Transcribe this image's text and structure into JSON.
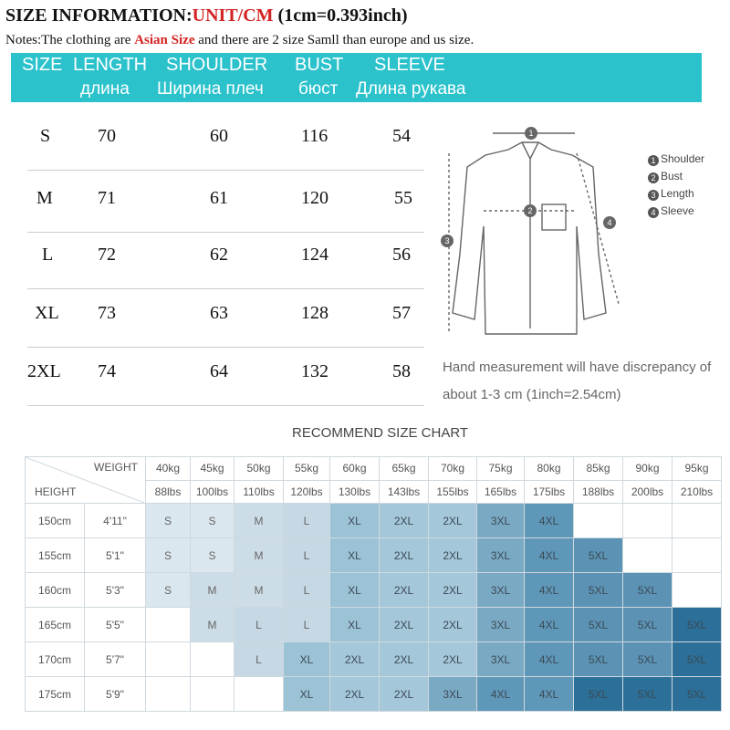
{
  "header": {
    "title_prefix": "SIZE INFORMATION:",
    "title_unit": "UNIT/CM",
    "title_suffix": "  (1cm=0.393inch)",
    "notes_prefix": "Notes:The clothing are ",
    "notes_highlight": "Asian Size",
    "notes_suffix": " and there are 2 size Samll than europe and us size."
  },
  "banner": {
    "en": [
      "SIZE",
      "LENGTH",
      "SHOULDER",
      "BUST",
      "SLEEVE"
    ],
    "ru": [
      "длина",
      "Ширина плеч",
      "бюст",
      "Длина рукава"
    ],
    "color": "#2bc2cc"
  },
  "size_table": [
    {
      "size": "S",
      "length": "70",
      "shoulder": "60",
      "bust": "116",
      "sleeve": "54"
    },
    {
      "size": "M",
      "length": "71",
      "shoulder": "61",
      "bust": "120",
      "sleeve": "55"
    },
    {
      "size": "L",
      "length": "72",
      "shoulder": "62",
      "bust": "124",
      "sleeve": "56"
    },
    {
      "size": "XL",
      "length": "73",
      "shoulder": "63",
      "bust": "128",
      "sleeve": "57"
    },
    {
      "size": "2XL",
      "length": "74",
      "shoulder": "64",
      "bust": "132",
      "sleeve": "58"
    }
  ],
  "diagram": {
    "legend": [
      {
        "num": "1",
        "label": "Shoulder"
      },
      {
        "num": "2",
        "label": "Bust"
      },
      {
        "num": "3",
        "label": "Length"
      },
      {
        "num": "4",
        "label": "Sleeve"
      }
    ],
    "markers": [
      "1",
      "2",
      "3",
      "4"
    ]
  },
  "hand_note": "Hand measurement will have discrepancy of about 1-3 cm  (1inch=2.54cm)",
  "recommend": {
    "title": "RECOMMEND SIZE CHART",
    "corner_weight": "WEIGHT",
    "corner_height": "HEIGHT",
    "weights_kg": [
      "40kg",
      "45kg",
      "50kg",
      "55kg",
      "60kg",
      "65kg",
      "70kg",
      "75kg",
      "80kg",
      "85kg",
      "90kg",
      "95kg"
    ],
    "weights_lbs": [
      "88lbs",
      "100lbs",
      "110lbs",
      "120lbs",
      "130lbs",
      "143lbs",
      "155lbs",
      "165lbs",
      "175lbs",
      "188lbs",
      "200lbs",
      "210lbs"
    ],
    "rows": [
      {
        "cm": "150cm",
        "ft": "4'11\"",
        "cells": [
          "S",
          "S",
          "M",
          "L",
          "XL",
          "2XL",
          "2XL",
          "3XL",
          "4XL",
          "",
          "",
          ""
        ]
      },
      {
        "cm": "155cm",
        "ft": "5'1\"",
        "cells": [
          "S",
          "S",
          "M",
          "L",
          "XL",
          "2XL",
          "2XL",
          "3XL",
          "4XL",
          "5XL",
          "",
          ""
        ]
      },
      {
        "cm": "160cm",
        "ft": "5'3\"",
        "cells": [
          "S",
          "M",
          "M",
          "L",
          "XL",
          "2XL",
          "2XL",
          "3XL",
          "4XL",
          "5XL",
          "5XL",
          ""
        ]
      },
      {
        "cm": "165cm",
        "ft": "5'5\"",
        "cells": [
          "",
          "M",
          "L",
          "L",
          "XL",
          "2XL",
          "2XL",
          "3XL",
          "4XL",
          "5XL",
          "5XL",
          "5XL"
        ]
      },
      {
        "cm": "170cm",
        "ft": "5'7\"",
        "cells": [
          "",
          "",
          "L",
          "XL",
          "2XL",
          "2XL",
          "2XL",
          "3XL",
          "4XL",
          "5XL",
          "5XL",
          "5XL"
        ]
      },
      {
        "cm": "175cm",
        "ft": "5'9\"",
        "cells": [
          "",
          "",
          "",
          "XL",
          "2XL",
          "2XL",
          "3XL",
          "4XL",
          "4XL",
          "5XL",
          "5XL",
          "5XL"
        ]
      }
    ],
    "size_colors": {
      "S": "#dbe7ee",
      "M": "#cddde7",
      "L": "#c5d8e4",
      "XL": "#9cc2d6",
      "2XL": "#a5c7da",
      "3XL": "#7aa9c4",
      "4XL": "#5f97b8",
      "5XL": "#5c93b5"
    },
    "deep_color": "#2c6f98"
  }
}
